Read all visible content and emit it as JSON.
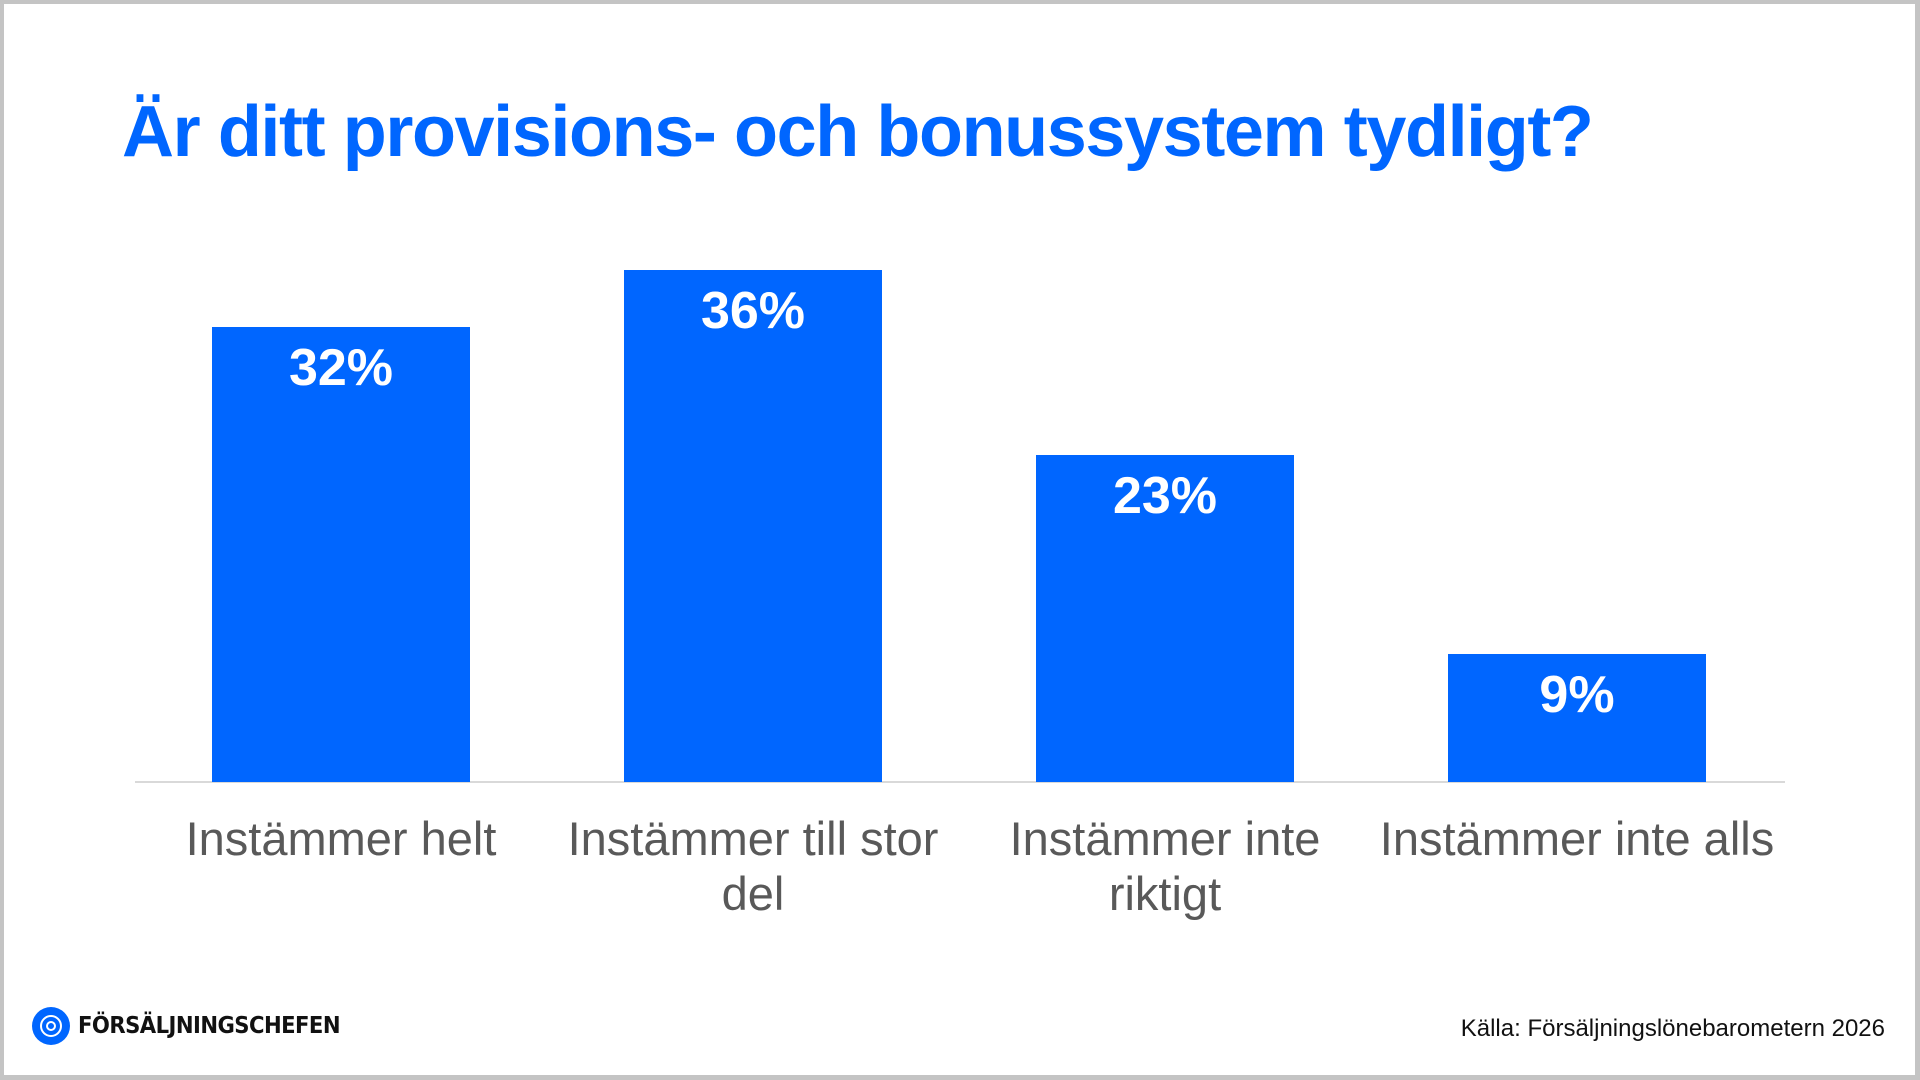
{
  "colors": {
    "accent": "#0066ff",
    "bar": "#0066ff",
    "bar_label": "#ffffff",
    "category_label": "#595959",
    "axis": "#d9d9d9",
    "source_text": "#111111",
    "frame": "#c4c4c4"
  },
  "title": "Är ditt provisions- och bonussystem tydligt?",
  "chart_data": {
    "type": "bar",
    "title": "Är ditt provisions- och bonussystem tydligt?",
    "categories": [
      "Instämmer helt",
      "Instämmer till stor del",
      "Instämmer inte riktigt",
      "Instämmer inte alls"
    ],
    "values": [
      32,
      36,
      23,
      9
    ],
    "value_labels": [
      "32%",
      "36%",
      "23%",
      "9%"
    ],
    "unit": "%",
    "xlabel": "",
    "ylabel": "",
    "ylim": [
      0,
      36
    ],
    "grid": false,
    "legend": null,
    "data_labels": "inside-top"
  },
  "categories_display": [
    {
      "line1": "Instämmer helt",
      "line2": ""
    },
    {
      "line1": "Instämmer till stor",
      "line2": "del"
    },
    {
      "line1": "Instämmer inte",
      "line2": "riktigt"
    },
    {
      "line1": "Instämmer inte alls",
      "line2": ""
    }
  ],
  "footer": {
    "logo_text": "FÖRSÄLJNINGSCHEFEN",
    "logo_icon": "target-circle-icon",
    "source": "Källa: Försäljningslönebarometern 2026"
  }
}
